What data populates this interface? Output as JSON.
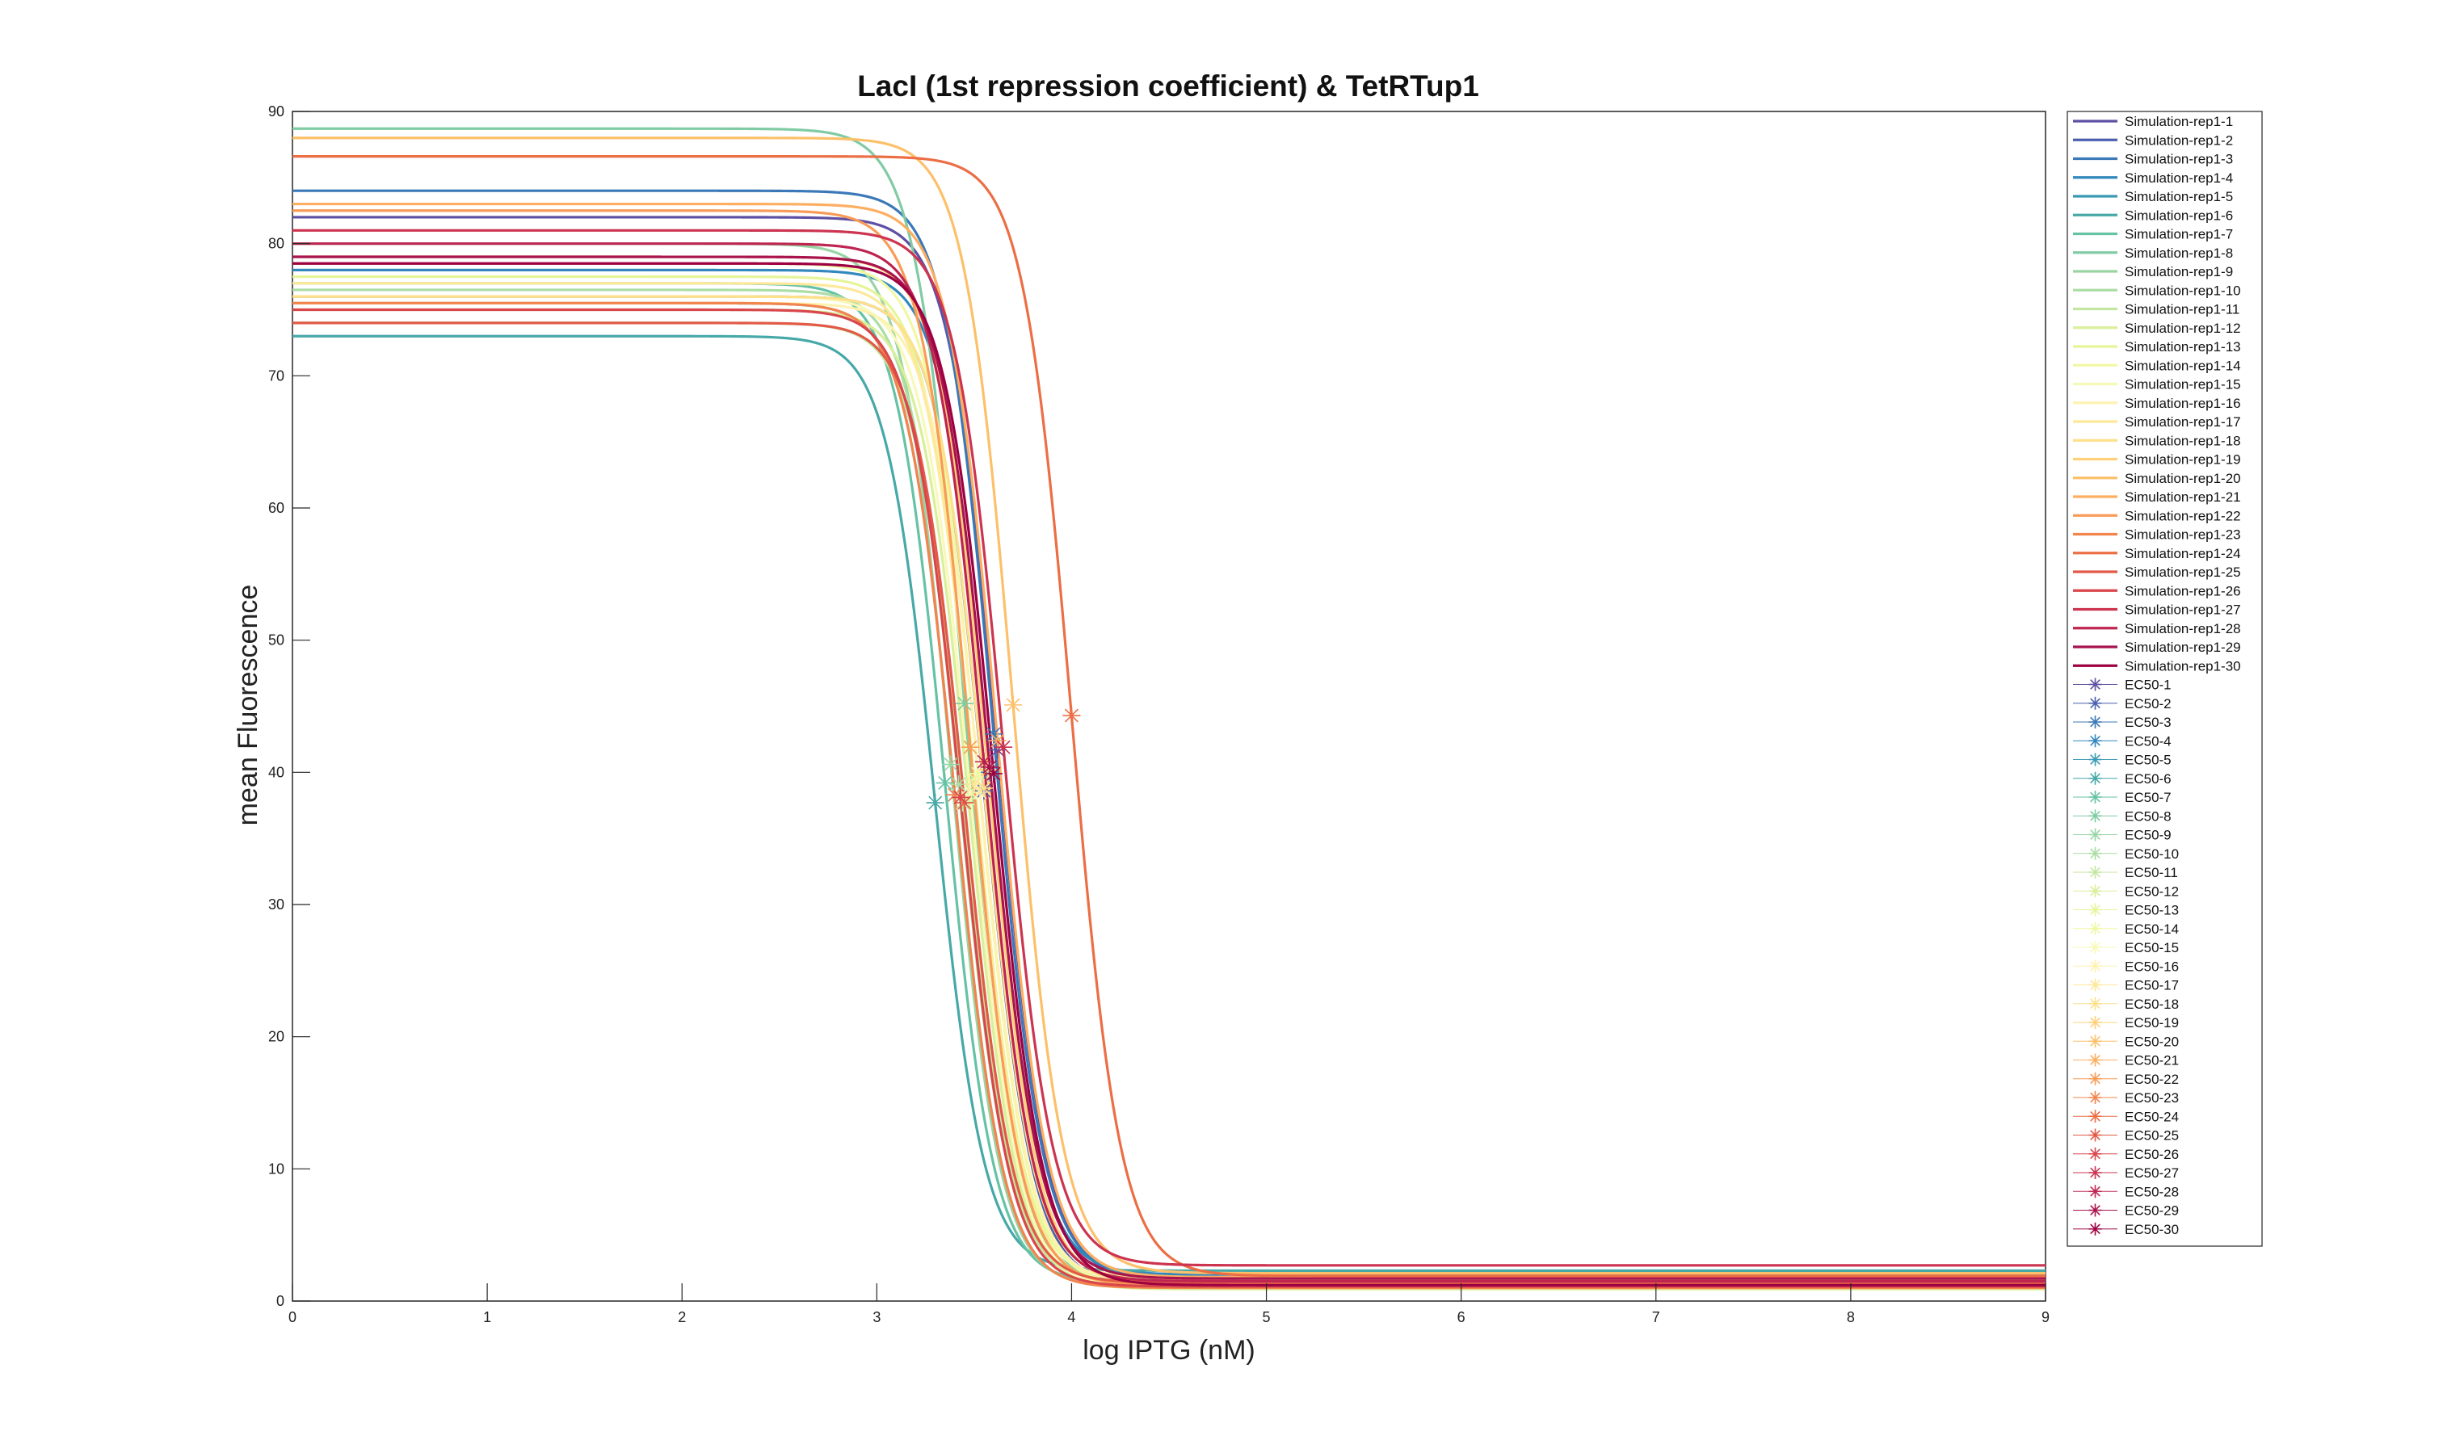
{
  "chart_data": {
    "type": "line",
    "title": "LacI (1st repression coefficient) & TetRTup1",
    "xlabel": "log IPTG (nM)",
    "ylabel": "mean Fluorescence",
    "xlim": [
      0,
      9
    ],
    "ylim": [
      0,
      90
    ],
    "xticks": [
      "0",
      "1",
      "2",
      "3",
      "4",
      "5",
      "6",
      "7",
      "8",
      "9"
    ],
    "yticks": [
      "0",
      "10",
      "20",
      "30",
      "40",
      "50",
      "60",
      "70",
      "80",
      "90"
    ],
    "grid": false,
    "legend_position": "right",
    "hill_n": 3.5,
    "series": [
      {
        "name": "Simulation-rep1-1",
        "color": "#5e4fa2",
        "top": 82.0,
        "bottom": 1.5,
        "ec50": 3.62
      },
      {
        "name": "Simulation-rep1-2",
        "color": "#4a5fae",
        "top": 76.0,
        "bottom": 1.2,
        "ec50": 3.55
      },
      {
        "name": "Simulation-rep1-3",
        "color": "#3b78b8",
        "top": 84.0,
        "bottom": 1.8,
        "ec50": 3.6
      },
      {
        "name": "Simulation-rep1-4",
        "color": "#3288bd",
        "top": 78.0,
        "bottom": 2.0,
        "ec50": 3.58
      },
      {
        "name": "Simulation-rep1-5",
        "color": "#3a99b4",
        "top": 75.5,
        "bottom": 1.0,
        "ec50": 3.4
      },
      {
        "name": "Simulation-rep1-6",
        "color": "#47a8a8",
        "top": 73.0,
        "bottom": 2.3,
        "ec50": 3.3
      },
      {
        "name": "Simulation-rep1-7",
        "color": "#66c2a5",
        "top": 77.0,
        "bottom": 1.4,
        "ec50": 3.35
      },
      {
        "name": "Simulation-rep1-8",
        "color": "#80cba4",
        "top": 88.7,
        "bottom": 1.6,
        "ec50": 3.45
      },
      {
        "name": "Simulation-rep1-9",
        "color": "#99d5a4",
        "top": 80.0,
        "bottom": 1.1,
        "ec50": 3.38
      },
      {
        "name": "Simulation-rep1-10",
        "color": "#abdda4",
        "top": 76.5,
        "bottom": 1.7,
        "ec50": 3.42
      },
      {
        "name": "Simulation-rep1-11",
        "color": "#c4e6a0",
        "top": 74.0,
        "bottom": 1.3,
        "ec50": 3.44
      },
      {
        "name": "Simulation-rep1-12",
        "color": "#d9ef9b",
        "top": 75.0,
        "bottom": 0.9,
        "ec50": 3.47
      },
      {
        "name": "Simulation-rep1-13",
        "color": "#e6f598",
        "top": 77.5,
        "bottom": 1.5,
        "ec50": 3.5
      },
      {
        "name": "Simulation-rep1-14",
        "color": "#f0f8a4",
        "top": 78.5,
        "bottom": 1.2,
        "ec50": 3.52
      },
      {
        "name": "Simulation-rep1-15",
        "color": "#f8f9b8",
        "top": 76.0,
        "bottom": 1.0,
        "ec50": 3.48
      },
      {
        "name": "Simulation-rep1-16",
        "color": "#fef2b0",
        "top": 75.5,
        "bottom": 1.4,
        "ec50": 3.53
      },
      {
        "name": "Simulation-rep1-17",
        "color": "#fee89a",
        "top": 77.0,
        "bottom": 1.1,
        "ec50": 3.5
      },
      {
        "name": "Simulation-rep1-18",
        "color": "#fee08b",
        "top": 76.0,
        "bottom": 1.6,
        "ec50": 3.55
      },
      {
        "name": "Simulation-rep1-19",
        "color": "#fed07a",
        "top": 79.0,
        "bottom": 1.3,
        "ec50": 3.57
      },
      {
        "name": "Simulation-rep1-20",
        "color": "#fdc06a",
        "top": 88.0,
        "bottom": 2.1,
        "ec50": 3.7
      },
      {
        "name": "Simulation-rep1-21",
        "color": "#fdae61",
        "top": 83.0,
        "bottom": 1.8,
        "ec50": 3.62
      },
      {
        "name": "Simulation-rep1-22",
        "color": "#f99b57",
        "top": 82.5,
        "bottom": 1.2,
        "ec50": 3.48
      },
      {
        "name": "Simulation-rep1-23",
        "color": "#f4844d",
        "top": 75.5,
        "bottom": 1.0,
        "ec50": 3.4
      },
      {
        "name": "Simulation-rep1-24",
        "color": "#ec6e44",
        "top": 86.6,
        "bottom": 1.9,
        "ec50": 4.0
      },
      {
        "name": "Simulation-rep1-25",
        "color": "#e25a47",
        "top": 74.0,
        "bottom": 1.4,
        "ec50": 3.45
      },
      {
        "name": "Simulation-rep1-26",
        "color": "#d9464c",
        "top": 75.0,
        "bottom": 1.1,
        "ec50": 3.43
      },
      {
        "name": "Simulation-rep1-27",
        "color": "#cc3450",
        "top": 81.0,
        "bottom": 2.7,
        "ec50": 3.65
      },
      {
        "name": "Simulation-rep1-28",
        "color": "#be2550",
        "top": 80.0,
        "bottom": 1.5,
        "ec50": 3.55
      },
      {
        "name": "Simulation-rep1-29",
        "color": "#a8144e",
        "top": 79.0,
        "bottom": 1.7,
        "ec50": 3.58
      },
      {
        "name": "Simulation-rep1-30",
        "color": "#9e0142",
        "top": 78.5,
        "bottom": 1.2,
        "ec50": 3.6
      }
    ],
    "ec50_series": [
      {
        "name": "EC50-1",
        "color": "#5e4fa2",
        "x": 3.62,
        "y": 41.7
      },
      {
        "name": "EC50-2",
        "color": "#4a5fae",
        "x": 3.55,
        "y": 38.6
      },
      {
        "name": "EC50-3",
        "color": "#3b78b8",
        "x": 3.6,
        "y": 42.9
      },
      {
        "name": "EC50-4",
        "color": "#3288bd",
        "x": 3.58,
        "y": 40.0
      },
      {
        "name": "EC50-5",
        "color": "#3a99b4",
        "x": 3.4,
        "y": 38.3
      },
      {
        "name": "EC50-6",
        "color": "#47a8a8",
        "x": 3.3,
        "y": 37.7
      },
      {
        "name": "EC50-7",
        "color": "#66c2a5",
        "x": 3.35,
        "y": 39.2
      },
      {
        "name": "EC50-8",
        "color": "#80cba4",
        "x": 3.45,
        "y": 45.2
      },
      {
        "name": "EC50-9",
        "color": "#99d5a4",
        "x": 3.38,
        "y": 40.6
      },
      {
        "name": "EC50-10",
        "color": "#abdda4",
        "x": 3.42,
        "y": 39.1
      },
      {
        "name": "EC50-11",
        "color": "#c4e6a0",
        "x": 3.44,
        "y": 37.7
      },
      {
        "name": "EC50-12",
        "color": "#d9ef9b",
        "x": 3.47,
        "y": 38.0
      },
      {
        "name": "EC50-13",
        "color": "#e6f598",
        "x": 3.5,
        "y": 39.5
      },
      {
        "name": "EC50-14",
        "color": "#f0f8a4",
        "x": 3.52,
        "y": 39.9
      },
      {
        "name": "EC50-15",
        "color": "#f8f9b8",
        "x": 3.48,
        "y": 38.5
      },
      {
        "name": "EC50-16",
        "color": "#fef2b0",
        "x": 3.53,
        "y": 38.5
      },
      {
        "name": "EC50-17",
        "color": "#fee89a",
        "x": 3.5,
        "y": 39.1
      },
      {
        "name": "EC50-18",
        "color": "#fee08b",
        "x": 3.55,
        "y": 38.8
      },
      {
        "name": "EC50-19",
        "color": "#fed07a",
        "x": 3.57,
        "y": 40.2
      },
      {
        "name": "EC50-20",
        "color": "#fdc06a",
        "x": 3.7,
        "y": 45.1
      },
      {
        "name": "EC50-21",
        "color": "#fdae61",
        "x": 3.62,
        "y": 42.4
      },
      {
        "name": "EC50-22",
        "color": "#f99b57",
        "x": 3.48,
        "y": 41.9
      },
      {
        "name": "EC50-23",
        "color": "#f4844d",
        "x": 3.4,
        "y": 38.3
      },
      {
        "name": "EC50-24",
        "color": "#ec6e44",
        "x": 4.0,
        "y": 44.3
      },
      {
        "name": "EC50-25",
        "color": "#e25a47",
        "x": 3.45,
        "y": 37.7
      },
      {
        "name": "EC50-26",
        "color": "#d9464c",
        "x": 3.43,
        "y": 38.1
      },
      {
        "name": "EC50-27",
        "color": "#cc3450",
        "x": 3.65,
        "y": 41.9
      },
      {
        "name": "EC50-28",
        "color": "#be2550",
        "x": 3.55,
        "y": 40.8
      },
      {
        "name": "EC50-29",
        "color": "#a8144e",
        "x": 3.58,
        "y": 40.4
      },
      {
        "name": "EC50-30",
        "color": "#9e0142",
        "x": 3.6,
        "y": 39.9
      }
    ]
  }
}
